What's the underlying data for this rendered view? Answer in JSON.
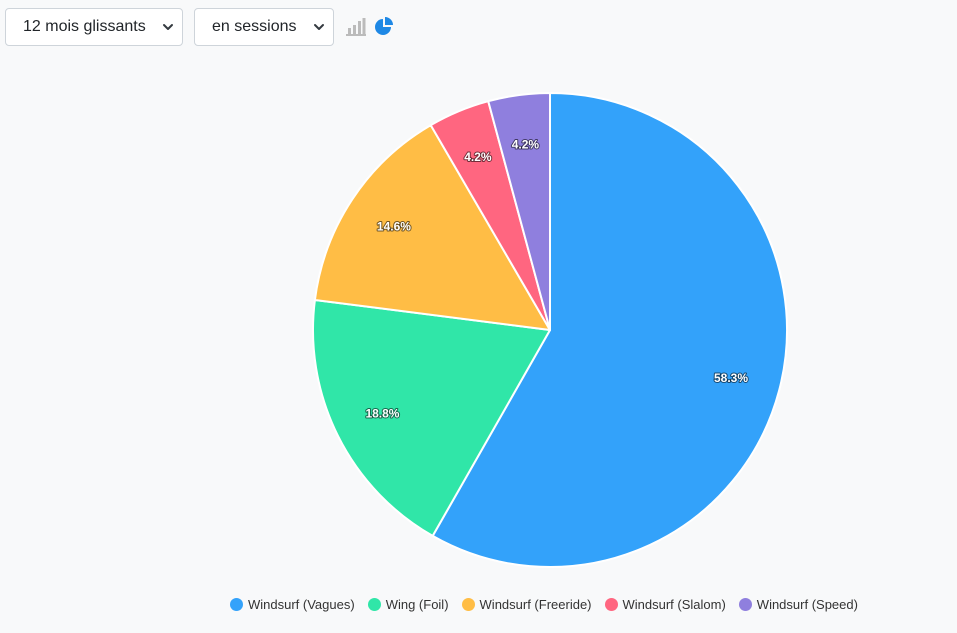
{
  "controls": {
    "period": {
      "value": "12 mois glissants"
    },
    "unit": {
      "value": "en sessions"
    },
    "toggles": [
      {
        "icon": "bar-chart-icon",
        "active": false,
        "color": "#bbbbbb"
      },
      {
        "icon": "pie-chart-icon",
        "active": true,
        "color": "#1e88e5"
      }
    ]
  },
  "chart_data": {
    "type": "pie",
    "title": "",
    "slices": [
      {
        "label": "Windsurf (Vagues)",
        "value": 58.3,
        "display": "58.3%",
        "color": "#33a2fa"
      },
      {
        "label": "Wing (Foil)",
        "value": 18.8,
        "display": "18.8%",
        "color": "#30e6a8"
      },
      {
        "label": "Windsurf (Freeride)",
        "value": 14.6,
        "display": "14.6%",
        "color": "#ffbd45"
      },
      {
        "label": "Windsurf (Slalom)",
        "value": 4.2,
        "display": "4.2%",
        "color": "#ff6680"
      },
      {
        "label": "Windsurf (Speed)",
        "value": 4.2,
        "display": "4.2%",
        "color": "#8f7fde"
      }
    ],
    "legend_position": "bottom",
    "start_angle": "top",
    "direction": "clockwise"
  }
}
